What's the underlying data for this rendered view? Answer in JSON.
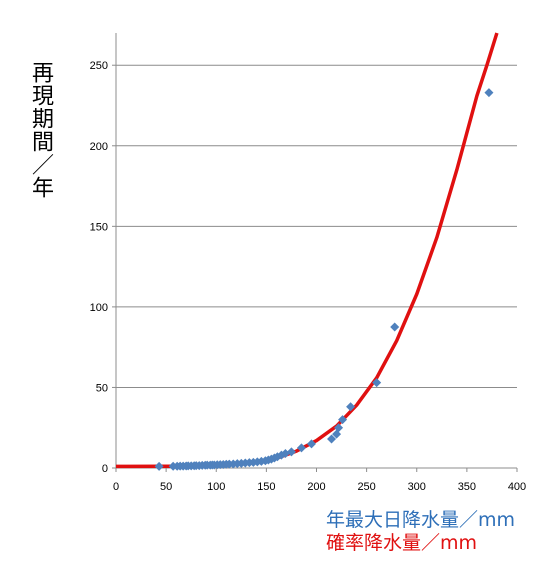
{
  "chart_data": {
    "type": "scatter",
    "ylabel": "再現期間／年",
    "xlabel_observed": "年最大日降水量／mm",
    "xlabel_probability": "確率降水量／mm",
    "xlim": [
      0,
      400
    ],
    "ylim": [
      0,
      270
    ],
    "x_ticks": [
      0,
      50,
      100,
      150,
      200,
      250,
      300,
      350,
      400
    ],
    "y_ticks": [
      0,
      50,
      100,
      150,
      200,
      250
    ],
    "grid": true,
    "colors": {
      "observed": "#4f81bd",
      "probability": "#e01010"
    },
    "series": [
      {
        "kind": "scatter",
        "marker": "diamond",
        "points": [
          [
            43,
            1.0
          ],
          [
            57,
            1.05
          ],
          [
            61,
            1.1
          ],
          [
            64,
            1.15
          ],
          [
            67,
            1.2
          ],
          [
            70,
            1.25
          ],
          [
            72,
            1.3
          ],
          [
            75,
            1.35
          ],
          [
            78,
            1.4
          ],
          [
            80,
            1.45
          ],
          [
            83,
            1.5
          ],
          [
            86,
            1.6
          ],
          [
            89,
            1.7
          ],
          [
            91,
            1.75
          ],
          [
            94,
            1.8
          ],
          [
            96,
            1.85
          ],
          [
            98,
            1.9
          ],
          [
            101,
            2.0
          ],
          [
            104,
            2.1
          ],
          [
            107,
            2.2
          ],
          [
            110,
            2.3
          ],
          [
            113,
            2.4
          ],
          [
            117,
            2.5
          ],
          [
            121,
            2.7
          ],
          [
            125,
            2.9
          ],
          [
            129,
            3.1
          ],
          [
            133,
            3.3
          ],
          [
            137,
            3.5
          ],
          [
            141,
            3.8
          ],
          [
            145,
            4.1
          ],
          [
            149,
            4.5
          ],
          [
            152,
            5.0
          ],
          [
            155,
            5.5
          ],
          [
            158,
            6.2
          ],
          [
            161,
            7.0
          ],
          [
            165,
            8.0
          ],
          [
            169,
            9.0
          ],
          [
            175,
            10.0
          ],
          [
            185,
            12.5
          ],
          [
            195,
            15.0
          ],
          [
            215,
            18.0
          ],
          [
            220,
            21.0
          ],
          [
            222,
            25.0
          ],
          [
            226,
            30.0
          ],
          [
            234,
            38.0
          ],
          [
            260,
            53.0
          ],
          [
            278,
            87.5
          ],
          [
            372,
            233.0
          ]
        ]
      },
      {
        "kind": "line",
        "curve": [
          [
            0,
            1.0
          ],
          [
            50,
            1.05
          ],
          [
            80,
            1.2
          ],
          [
            100,
            1.6
          ],
          [
            120,
            2.3
          ],
          [
            140,
            3.5
          ],
          [
            160,
            6.0
          ],
          [
            180,
            10.5
          ],
          [
            200,
            17.0
          ],
          [
            220,
            26.0
          ],
          [
            240,
            39.0
          ],
          [
            260,
            56.0
          ],
          [
            280,
            79.0
          ],
          [
            300,
            108.0
          ],
          [
            320,
            143.0
          ],
          [
            340,
            185.0
          ],
          [
            360,
            231.0
          ],
          [
            370,
            250.0
          ],
          [
            380,
            270.0
          ]
        ]
      }
    ]
  }
}
